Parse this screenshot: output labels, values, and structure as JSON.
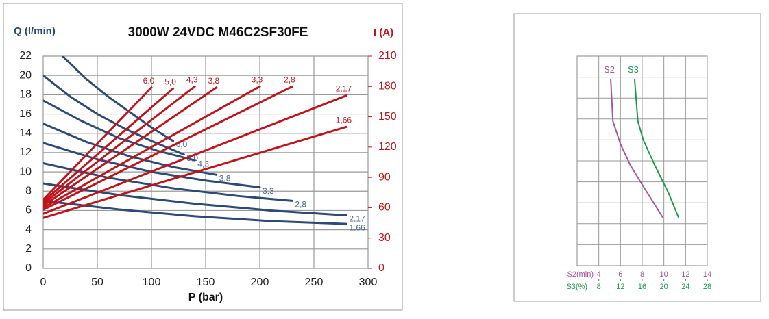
{
  "chart_data": [
    {
      "type": "line",
      "title": "3000W 24VDC M46C2SF30FE",
      "xlabel": "P (bar)",
      "ylabel": "Q (l/min)",
      "y2label": "I (A)",
      "xlim": [
        0,
        300
      ],
      "xticks": [
        0,
        50,
        100,
        150,
        200,
        250,
        300
      ],
      "ylim": [
        0,
        22
      ],
      "yticks": [
        0,
        2,
        4,
        6,
        8,
        10,
        12,
        14,
        16,
        18,
        20,
        22
      ],
      "y2lim": [
        0,
        210
      ],
      "y2ticks": [
        0,
        30,
        60,
        90,
        120,
        150,
        180,
        210
      ],
      "grid": true,
      "series": [
        {
          "name": "6,0",
          "color": "#2b4a78",
          "x": [
            18,
            40,
            60,
            80,
            100,
            120
          ],
          "values": [
            22,
            19.6,
            17.8,
            16.2,
            14.6,
            13.2
          ]
        },
        {
          "name": "5,0",
          "color": "#2b4a78",
          "x": [
            0,
            25,
            50,
            75,
            100,
            130
          ],
          "values": [
            20,
            17.8,
            16,
            14.5,
            13.2,
            11.8
          ]
        },
        {
          "name": "4,3",
          "color": "#2b4a78",
          "x": [
            0,
            35,
            70,
            105,
            140
          ],
          "values": [
            17.4,
            15.3,
            13.5,
            12.2,
            11.2
          ]
        },
        {
          "name": "3,8",
          "color": "#2b4a78",
          "x": [
            0,
            40,
            80,
            120,
            160
          ],
          "values": [
            15,
            13.1,
            11.6,
            10.5,
            9.7
          ]
        },
        {
          "name": "3,3",
          "color": "#2b4a78",
          "x": [
            0,
            50,
            100,
            150,
            200
          ],
          "values": [
            13,
            11.3,
            10,
            9.1,
            8.4
          ]
        },
        {
          "name": "2,8",
          "color": "#2b4a78",
          "x": [
            0,
            60,
            120,
            180,
            230
          ],
          "values": [
            10.9,
            9.4,
            8.3,
            7.5,
            7
          ]
        },
        {
          "name": "2,17",
          "color": "#2b4a78",
          "x": [
            0,
            70,
            140,
            210,
            280
          ],
          "values": [
            8.8,
            7.6,
            6.7,
            6,
            5.5
          ]
        },
        {
          "name": "1,66",
          "color": "#2b4a78",
          "x": [
            0,
            70,
            140,
            210,
            280
          ],
          "values": [
            7,
            6.1,
            5.4,
            4.9,
            4.6
          ]
        },
        {
          "name": "6,0",
          "color": "#c0141c",
          "axis": "y2",
          "x": [
            0,
            100
          ],
          "values": [
            68,
            179
          ]
        },
        {
          "name": "5,0",
          "color": "#c0141c",
          "axis": "y2",
          "x": [
            0,
            120
          ],
          "values": [
            66,
            178
          ]
        },
        {
          "name": "4,3",
          "color": "#c0141c",
          "axis": "y2",
          "x": [
            0,
            140
          ],
          "values": [
            64,
            180
          ]
        },
        {
          "name": "3,8",
          "color": "#c0141c",
          "axis": "y2",
          "x": [
            0,
            160
          ],
          "values": [
            62,
            179
          ]
        },
        {
          "name": "3,3",
          "color": "#c0141c",
          "axis": "y2",
          "x": [
            0,
            200
          ],
          "values": [
            60,
            180
          ]
        },
        {
          "name": "2,8",
          "color": "#c0141c",
          "axis": "y2",
          "x": [
            0,
            230
          ],
          "values": [
            58,
            180
          ]
        },
        {
          "name": "2,17",
          "color": "#c0141c",
          "axis": "y2",
          "x": [
            0,
            280
          ],
          "values": [
            54,
            171
          ]
        },
        {
          "name": "1,66",
          "color": "#c0141c",
          "axis": "y2",
          "x": [
            0,
            280
          ],
          "values": [
            50,
            140
          ]
        }
      ]
    },
    {
      "type": "line",
      "xlabel": "S2(min)",
      "x2label": "S3(%)",
      "xlim": [
        2,
        14
      ],
      "xticks": [
        4,
        6,
        8,
        10,
        12,
        14
      ],
      "x2lim": [
        4,
        28
      ],
      "x2ticks": [
        8,
        12,
        16,
        20,
        24,
        28
      ],
      "ylim": [
        0,
        10
      ],
      "yticks": [
        1,
        2,
        3,
        4,
        5,
        6,
        7,
        8,
        9
      ],
      "ytick_labels": false,
      "grid": true,
      "series": [
        {
          "name": "S2",
          "color": "#a8559a",
          "x": [
            5.1,
            5.3,
            6,
            6.9,
            8.2,
            9.9
          ],
          "values": [
            8.9,
            6.9,
            5.8,
            4.8,
            3.7,
            2.3
          ]
        },
        {
          "name": "S3",
          "color": "#1c9a4a",
          "axis": "x2",
          "x": [
            14.6,
            15.2,
            16.2,
            18.3,
            20.8,
            22.7
          ],
          "values": [
            8.9,
            6.9,
            6,
            4.8,
            3.5,
            2.3
          ]
        }
      ]
    }
  ]
}
